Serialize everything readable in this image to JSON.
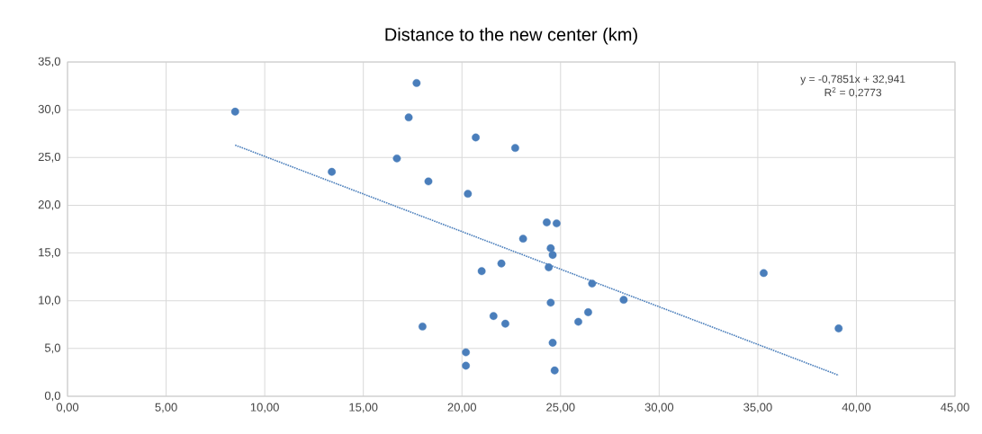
{
  "chart_data": {
    "type": "scatter",
    "title": "Distance to the new center (km)",
    "xlim": [
      0,
      45
    ],
    "ylim": [
      0,
      35
    ],
    "xticks": [
      {
        "value": 0,
        "label": "0,00"
      },
      {
        "value": 5,
        "label": "5,00"
      },
      {
        "value": 10,
        "label": "10,00"
      },
      {
        "value": 15,
        "label": "15,00"
      },
      {
        "value": 20,
        "label": "20,00"
      },
      {
        "value": 25,
        "label": "25,00"
      },
      {
        "value": 30,
        "label": "30,00"
      },
      {
        "value": 35,
        "label": "35,00"
      },
      {
        "value": 40,
        "label": "40,00"
      },
      {
        "value": 45,
        "label": "45,00"
      }
    ],
    "yticks": [
      {
        "value": 0,
        "label": "0,0"
      },
      {
        "value": 5,
        "label": "5,0"
      },
      {
        "value": 10,
        "label": "10,0"
      },
      {
        "value": 15,
        "label": "15,0"
      },
      {
        "value": 20,
        "label": "20,0"
      },
      {
        "value": 25,
        "label": "25,0"
      },
      {
        "value": 30,
        "label": "30,0"
      },
      {
        "value": 35,
        "label": "35,0"
      }
    ],
    "grid": true,
    "series": [
      {
        "color": "#4a7ebb",
        "marker": "circle",
        "x": [
          8.5,
          17.7,
          17.3,
          20.7,
          22.7,
          16.7,
          13.4,
          18.3,
          20.3,
          24.3,
          24.8,
          23.1,
          24.5,
          24.6,
          24.4,
          22.0,
          21.0,
          26.6,
          28.2,
          24.5,
          35.3,
          26.4,
          25.9,
          21.6,
          22.2,
          18.0,
          20.2,
          20.2,
          24.6,
          24.7,
          39.1
        ],
        "values": [
          29.8,
          32.8,
          29.2,
          27.1,
          26.0,
          24.9,
          23.5,
          22.5,
          21.2,
          18.2,
          18.1,
          16.5,
          15.5,
          14.8,
          13.5,
          13.9,
          13.1,
          11.8,
          10.1,
          9.8,
          12.9,
          8.8,
          7.8,
          8.4,
          7.6,
          7.3,
          4.6,
          3.2,
          5.6,
          2.7,
          7.1
        ]
      },
      {
        "type": "line",
        "color": "#4a7ebb",
        "line_style": "dotted",
        "marker": "none",
        "x": [
          8.5,
          39.1
        ],
        "values": [
          26.3,
          2.2
        ]
      }
    ],
    "annotations": [
      "y = -0,7851x + 32,941",
      "R$^{2}$ = 0,2773"
    ]
  }
}
